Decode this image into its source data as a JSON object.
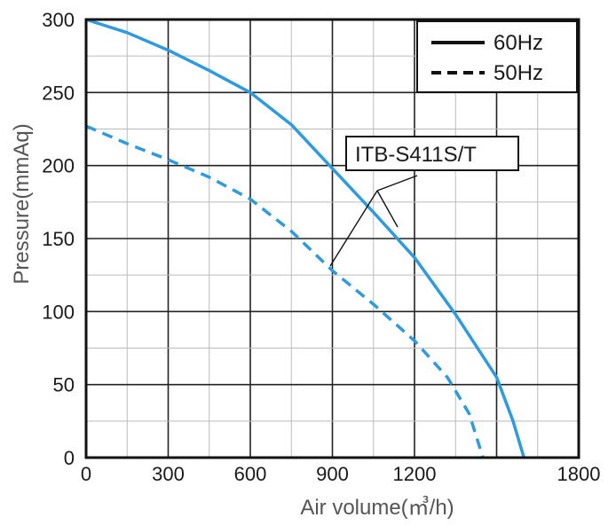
{
  "chart_data": {
    "type": "line",
    "xlabel": "Air volume(㎥/h)",
    "ylabel": "Pressure(mmAq)",
    "xlim": [
      0,
      1800
    ],
    "ylim": [
      0,
      300
    ],
    "x_ticks": [
      "0",
      "300",
      "600",
      "900",
      "1200",
      "1800"
    ],
    "x_ticks_full": [
      "0",
      "300",
      "600",
      "900",
      "1200",
      "1500",
      "1800"
    ],
    "y_ticks": [
      "0",
      "50",
      "100",
      "150",
      "200",
      "250",
      "300"
    ],
    "grid": true,
    "legend_position": "top-right",
    "series": [
      {
        "name": "60Hz",
        "style": "solid",
        "color": "#2e9be0",
        "points": [
          [
            0,
            300
          ],
          [
            150,
            291
          ],
          [
            300,
            279
          ],
          [
            450,
            265
          ],
          [
            600,
            250
          ],
          [
            750,
            228
          ],
          [
            900,
            198
          ],
          [
            1050,
            168
          ],
          [
            1200,
            137
          ],
          [
            1350,
            98
          ],
          [
            1500,
            55
          ],
          [
            1560,
            25
          ],
          [
            1600,
            0
          ]
        ]
      },
      {
        "name": "50Hz",
        "style": "dashed",
        "color": "#2e9be0",
        "points": [
          [
            0,
            227
          ],
          [
            150,
            215
          ],
          [
            300,
            204
          ],
          [
            450,
            192
          ],
          [
            600,
            177
          ],
          [
            750,
            155
          ],
          [
            900,
            128
          ],
          [
            1050,
            105
          ],
          [
            1200,
            80
          ],
          [
            1320,
            55
          ],
          [
            1400,
            30
          ],
          [
            1450,
            0
          ]
        ]
      }
    ],
    "annotation": "ITB-S411S/T"
  }
}
